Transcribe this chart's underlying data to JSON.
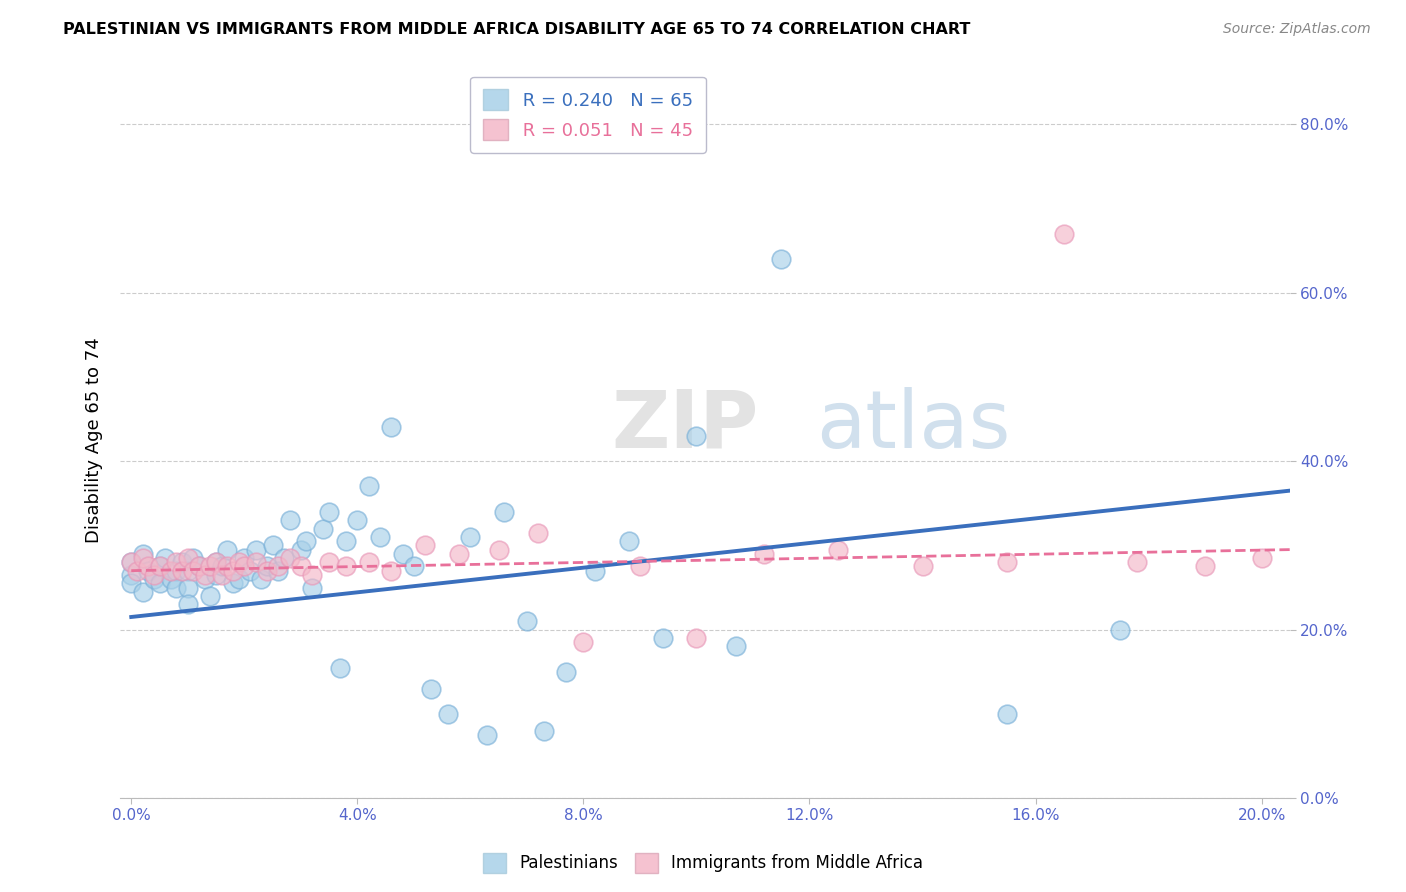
{
  "title": "PALESTINIAN VS IMMIGRANTS FROM MIDDLE AFRICA DISABILITY AGE 65 TO 74 CORRELATION CHART",
  "source": "Source: ZipAtlas.com",
  "ylabel": "Disability Age 65 to 74",
  "xlim": [
    -0.002,
    0.205
  ],
  "ylim": [
    0.0,
    0.85
  ],
  "xticks": [
    0.0,
    0.04,
    0.08,
    0.12,
    0.16,
    0.2
  ],
  "yticks": [
    0.0,
    0.2,
    0.4,
    0.6,
    0.8
  ],
  "xticklabels": [
    "0.0%",
    "4.0%",
    "8.0%",
    "12.0%",
    "16.0%",
    "20.0%"
  ],
  "yticklabels": [
    "0.0%",
    "20.0%",
    "40.0%",
    "60.0%",
    "80.0%"
  ],
  "blue_R": 0.24,
  "blue_N": 65,
  "pink_R": 0.051,
  "pink_N": 45,
  "blue_color": "#a8d0e8",
  "pink_color": "#f4b8c8",
  "blue_line_color": "#3a6fbd",
  "pink_line_color": "#e8709a",
  "blue_scatter_x": [
    0.0,
    0.0,
    0.0,
    0.002,
    0.002,
    0.003,
    0.004,
    0.005,
    0.005,
    0.006,
    0.007,
    0.008,
    0.008,
    0.009,
    0.01,
    0.01,
    0.01,
    0.011,
    0.012,
    0.013,
    0.014,
    0.015,
    0.015,
    0.016,
    0.017,
    0.018,
    0.019,
    0.02,
    0.021,
    0.022,
    0.023,
    0.024,
    0.025,
    0.026,
    0.027,
    0.028,
    0.03,
    0.031,
    0.032,
    0.034,
    0.035,
    0.037,
    0.038,
    0.04,
    0.042,
    0.044,
    0.046,
    0.048,
    0.05,
    0.053,
    0.056,
    0.06,
    0.063,
    0.066,
    0.07,
    0.073,
    0.077,
    0.082,
    0.088,
    0.094,
    0.1,
    0.107,
    0.115,
    0.155,
    0.175
  ],
  "blue_scatter_y": [
    0.265,
    0.28,
    0.255,
    0.29,
    0.245,
    0.27,
    0.26,
    0.275,
    0.255,
    0.285,
    0.26,
    0.27,
    0.25,
    0.28,
    0.27,
    0.25,
    0.23,
    0.285,
    0.275,
    0.26,
    0.24,
    0.28,
    0.265,
    0.275,
    0.295,
    0.255,
    0.26,
    0.285,
    0.27,
    0.295,
    0.26,
    0.275,
    0.3,
    0.27,
    0.285,
    0.33,
    0.295,
    0.305,
    0.25,
    0.32,
    0.34,
    0.155,
    0.305,
    0.33,
    0.37,
    0.31,
    0.44,
    0.29,
    0.275,
    0.13,
    0.1,
    0.31,
    0.075,
    0.34,
    0.21,
    0.08,
    0.15,
    0.27,
    0.305,
    0.19,
    0.43,
    0.18,
    0.64,
    0.1,
    0.2
  ],
  "pink_scatter_x": [
    0.0,
    0.001,
    0.002,
    0.003,
    0.004,
    0.005,
    0.007,
    0.008,
    0.009,
    0.01,
    0.011,
    0.012,
    0.013,
    0.014,
    0.015,
    0.016,
    0.017,
    0.018,
    0.019,
    0.02,
    0.022,
    0.024,
    0.026,
    0.028,
    0.03,
    0.032,
    0.035,
    0.038,
    0.042,
    0.046,
    0.052,
    0.058,
    0.065,
    0.072,
    0.08,
    0.09,
    0.1,
    0.112,
    0.125,
    0.14,
    0.155,
    0.165,
    0.178,
    0.19,
    0.2
  ],
  "pink_scatter_y": [
    0.28,
    0.27,
    0.285,
    0.275,
    0.265,
    0.275,
    0.27,
    0.28,
    0.27,
    0.285,
    0.27,
    0.275,
    0.265,
    0.275,
    0.28,
    0.265,
    0.275,
    0.27,
    0.28,
    0.275,
    0.28,
    0.27,
    0.275,
    0.285,
    0.275,
    0.265,
    0.28,
    0.275,
    0.28,
    0.27,
    0.3,
    0.29,
    0.295,
    0.315,
    0.185,
    0.275,
    0.19,
    0.29,
    0.295,
    0.275,
    0.28,
    0.67,
    0.28,
    0.275,
    0.285
  ],
  "blue_trendline_x": [
    0.0,
    0.205
  ],
  "blue_trendline_y": [
    0.215,
    0.365
  ],
  "pink_trendline_x": [
    0.0,
    0.205
  ],
  "pink_trendline_y": [
    0.27,
    0.295
  ],
  "grid_color": "#cccccc",
  "background_color": "#ffffff"
}
